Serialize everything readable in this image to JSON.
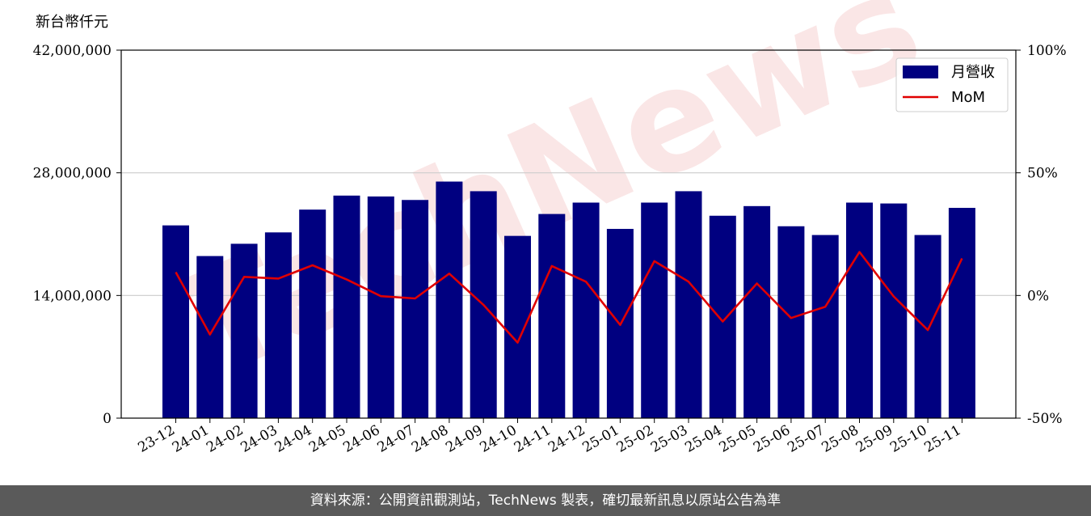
{
  "footer": {
    "text": "資料來源：公開資訊觀測站，TechNews 製表，確切最新訊息以原站公告為準"
  },
  "watermark": {
    "text": "TechNews"
  },
  "chart_data": {
    "type": "bar",
    "y_unit_label": "新台幣仟元",
    "categories": [
      "23-12",
      "24-01",
      "24-02",
      "24-03",
      "24-04",
      "24-05",
      "24-06",
      "24-07",
      "24-08",
      "24-09",
      "24-10",
      "24-11",
      "24-12",
      "25-01",
      "25-02",
      "25-03",
      "25-04",
      "25-05",
      "25-06",
      "25-07",
      "25-08",
      "25-09",
      "25-10",
      "25-11"
    ],
    "series": [
      {
        "name": "月營收",
        "kind": "bar",
        "axis": "left",
        "color": "#000080",
        "values": [
          22000000,
          18500000,
          19900000,
          21200000,
          23800000,
          25400000,
          25300000,
          24900000,
          27000000,
          25900000,
          20800000,
          23300000,
          24600000,
          21600000,
          24600000,
          25900000,
          23100000,
          24200000,
          21900000,
          20900000,
          24600000,
          24500000,
          20900000,
          24000000
        ]
      },
      {
        "name": "MoM",
        "kind": "line",
        "axis": "right",
        "color": "#e00000",
        "values": [
          9.5,
          -15.9,
          7.6,
          6.9,
          12.3,
          6.5,
          -0.3,
          -1.2,
          8.9,
          -3.8,
          -19.2,
          12,
          5.6,
          -12,
          14,
          5.6,
          -10.6,
          4.9,
          -9.2,
          -4.6,
          17.7,
          -0.4,
          -14.1,
          15.1
        ]
      }
    ],
    "ylim": [
      0,
      42000000
    ],
    "yticks": [
      "0",
      "14,000,000",
      "28,000,000",
      "42,000,000"
    ],
    "y2lim": [
      -50,
      100
    ],
    "y2ticks": [
      "-50%",
      "0%",
      "50%",
      "100%"
    ],
    "grid": "horizontal",
    "legend_position": "top-right"
  }
}
